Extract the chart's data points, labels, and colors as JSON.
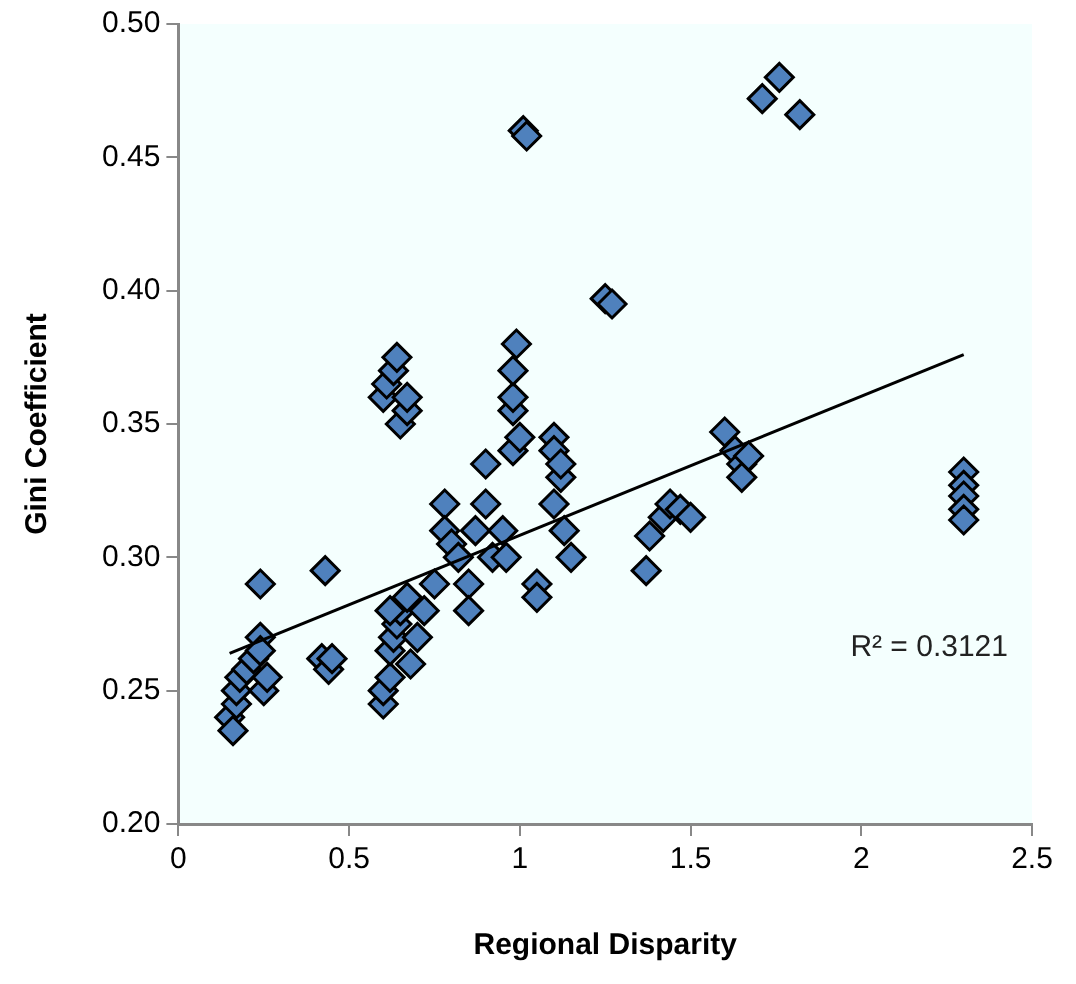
{
  "chart_data": {
    "type": "scatter",
    "xlabel": "Regional Disparity",
    "ylabel": "Gini Coefficient",
    "xlim": [
      0,
      2.5
    ],
    "xticks": [
      0,
      0.5,
      1,
      1.5,
      2,
      2.5
    ],
    "ylim": [
      0.2,
      0.5
    ],
    "yticks": [
      {
        "value": 0.2,
        "label": "0.20"
      },
      {
        "value": 0.25,
        "label": "0.25"
      },
      {
        "value": 0.3,
        "label": "0.30"
      },
      {
        "value": 0.35,
        "label": "0.35"
      },
      {
        "value": 0.4,
        "label": "0.40"
      },
      {
        "value": 0.45,
        "label": "0.45"
      },
      {
        "value": 0.5,
        "label": "0.50"
      }
    ],
    "grid": false,
    "legend": false,
    "marker": "diamond",
    "series": [
      {
        "color": "#4f81bd",
        "x": [
          0.15,
          0.16,
          0.17,
          0.17,
          0.18,
          0.2,
          0.22,
          0.24,
          0.24,
          0.25,
          0.26,
          0.24,
          0.43,
          0.42,
          0.44,
          0.45,
          0.6,
          0.6,
          0.62,
          0.62,
          0.63,
          0.64,
          0.65,
          0.62,
          0.67,
          0.68,
          0.7,
          0.72,
          0.75,
          0.6,
          0.61,
          0.63,
          0.64,
          0.65,
          0.67,
          0.67,
          0.78,
          0.78,
          0.8,
          0.82,
          0.85,
          0.85,
          0.87,
          0.9,
          0.9,
          0.92,
          0.95,
          0.96,
          0.98,
          0.98,
          0.98,
          0.98,
          0.99,
          1.0,
          1.05,
          1.05,
          1.1,
          1.1,
          1.12,
          1.1,
          1.13,
          1.15,
          1.12,
          1.01,
          1.02,
          1.25,
          1.27,
          1.37,
          1.38,
          1.42,
          1.44,
          1.47,
          1.5,
          1.6,
          1.63,
          1.65,
          1.65,
          1.67,
          2.3,
          2.3,
          2.3,
          2.3,
          2.3,
          1.71,
          1.76,
          1.82
        ],
        "values": [
          0.24,
          0.235,
          0.245,
          0.25,
          0.255,
          0.258,
          0.262,
          0.27,
          0.29,
          0.25,
          0.255,
          0.265,
          0.295,
          0.262,
          0.258,
          0.262,
          0.245,
          0.25,
          0.255,
          0.265,
          0.27,
          0.275,
          0.28,
          0.28,
          0.285,
          0.26,
          0.27,
          0.28,
          0.29,
          0.36,
          0.365,
          0.37,
          0.375,
          0.35,
          0.355,
          0.36,
          0.32,
          0.31,
          0.305,
          0.3,
          0.29,
          0.28,
          0.31,
          0.32,
          0.335,
          0.3,
          0.31,
          0.3,
          0.34,
          0.355,
          0.36,
          0.37,
          0.38,
          0.345,
          0.29,
          0.285,
          0.345,
          0.34,
          0.33,
          0.32,
          0.31,
          0.3,
          0.335,
          0.46,
          0.458,
          0.397,
          0.395,
          0.295,
          0.308,
          0.315,
          0.32,
          0.318,
          0.315,
          0.347,
          0.34,
          0.335,
          0.33,
          0.338,
          0.332,
          0.327,
          0.323,
          0.318,
          0.314,
          0.472,
          0.48,
          0.466
        ]
      },
      {
        "type": "line",
        "color": "#000000",
        "marker": "none",
        "x": [
          0.15,
          2.3
        ],
        "values": [
          0.264,
          0.376
        ]
      }
    ],
    "annotations": [
      "R² = 0.3121"
    ]
  }
}
